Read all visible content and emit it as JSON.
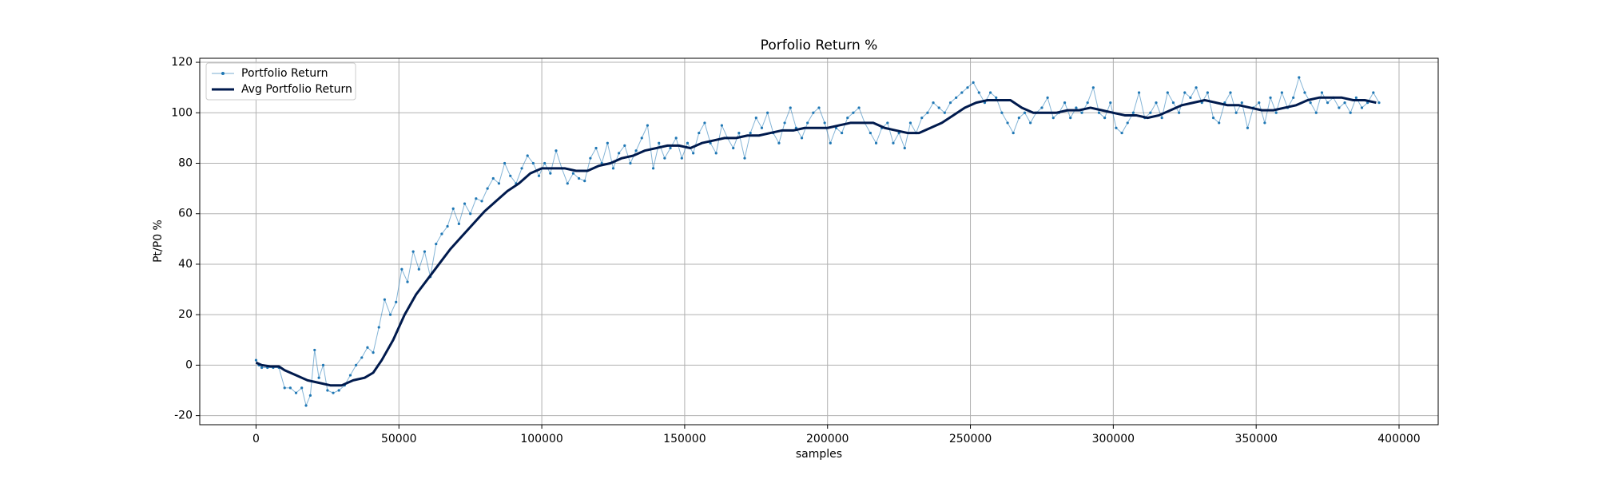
{
  "chart_data": {
    "type": "line",
    "title": "Porfolio Return %",
    "x_label": "samples",
    "y_label": "Pt/P0 %",
    "xlim": [
      -19700,
      413700
    ],
    "xticks": [
      0,
      50000,
      100000,
      150000,
      200000,
      250000,
      300000,
      350000,
      400000
    ],
    "ylim": [
      -23.6,
      121.6
    ],
    "yticks": [
      -20,
      0,
      20,
      40,
      60,
      80,
      100,
      120
    ],
    "grid": true,
    "legend": "upper-left",
    "series": [
      {
        "name": "Portfolio Return",
        "color": "#1f77b4",
        "x": [
          0,
          1000,
          2000,
          4000,
          6000,
          8000,
          10000,
          12000,
          14000,
          16000,
          17500,
          19000,
          20500,
          22000,
          23500,
          25000,
          27000,
          29000,
          31000,
          33000,
          35000,
          37000,
          39000,
          41000,
          43000,
          45000,
          47000,
          49000,
          51000,
          53000,
          55000,
          57000,
          59000,
          61000,
          63000,
          65000,
          67000,
          69000,
          71000,
          73000,
          75000,
          77000,
          79000,
          81000,
          83000,
          85000,
          87000,
          89000,
          91000,
          93000,
          95000,
          97000,
          99000,
          101000,
          103000,
          105000,
          107000,
          109000,
          111000,
          113000,
          115000,
          117000,
          119000,
          121000,
          123000,
          125000,
          127000,
          129000,
          131000,
          133000,
          135000,
          137000,
          139000,
          141000,
          143000,
          145000,
          147000,
          149000,
          151000,
          153000,
          155000,
          157000,
          159000,
          161000,
          163000,
          165000,
          167000,
          169000,
          171000,
          173000,
          175000,
          177000,
          179000,
          181000,
          183000,
          185000,
          187000,
          189000,
          191000,
          193000,
          195000,
          197000,
          199000,
          201000,
          203000,
          205000,
          207000,
          209000,
          211000,
          213000,
          215000,
          217000,
          219000,
          221000,
          223000,
          225000,
          227000,
          229000,
          231000,
          233000,
          235000,
          237000,
          239000,
          241000,
          243000,
          245000,
          247000,
          249000,
          251000,
          253000,
          255000,
          257000,
          259000,
          261000,
          263000,
          265000,
          267000,
          269000,
          271000,
          273000,
          275000,
          277000,
          279000,
          281000,
          283000,
          285000,
          287000,
          289000,
          291000,
          293000,
          295000,
          297000,
          299000,
          301000,
          303000,
          305000,
          307000,
          309000,
          311000,
          313000,
          315000,
          317000,
          319000,
          321000,
          323000,
          325000,
          327000,
          329000,
          331000,
          333000,
          335000,
          337000,
          339000,
          341000,
          343000,
          345000,
          347000,
          349000,
          351000,
          353000,
          355000,
          357000,
          359000,
          361000,
          363000,
          365000,
          367000,
          369000,
          371000,
          373000,
          375000,
          377000,
          379000,
          381000,
          383000,
          385000,
          387000,
          389000,
          391000,
          393000
        ],
        "values": [
          2,
          0,
          -1,
          -1,
          -1,
          -1,
          -9,
          -9,
          -11,
          -9,
          -16,
          -12,
          6,
          -5,
          0,
          -10,
          -11,
          -10,
          -8,
          -4,
          0,
          3,
          7,
          5,
          15,
          26,
          20,
          25,
          38,
          33,
          45,
          38,
          45,
          35,
          48,
          52,
          55,
          62,
          56,
          64,
          60,
          66,
          65,
          70,
          74,
          72,
          80,
          75,
          72,
          78,
          83,
          80,
          75,
          80,
          76,
          85,
          78,
          72,
          76,
          74,
          73,
          82,
          86,
          80,
          88,
          78,
          84,
          87,
          80,
          85,
          90,
          95,
          78,
          88,
          82,
          86,
          90,
          82,
          88,
          84,
          92,
          96,
          88,
          84,
          95,
          90,
          86,
          92,
          82,
          92,
          98,
          94,
          100,
          92,
          88,
          96,
          102,
          94,
          90,
          96,
          100,
          102,
          96,
          88,
          94,
          92,
          98,
          100,
          102,
          96,
          92,
          88,
          94,
          96,
          88,
          92,
          86,
          96,
          92,
          98,
          100,
          104,
          102,
          100,
          104,
          106,
          108,
          110,
          112,
          108,
          104,
          108,
          106,
          100,
          96,
          92,
          98,
          100,
          96,
          100,
          102,
          106,
          98,
          100,
          104,
          98,
          102,
          100,
          104,
          110,
          100,
          98,
          104,
          94,
          92,
          96,
          100,
          108,
          98,
          100,
          104,
          98,
          108,
          104,
          100,
          108,
          106,
          110,
          104,
          108,
          98,
          96,
          104,
          108,
          100,
          104,
          94,
          102,
          104,
          96,
          106,
          100,
          108,
          102,
          106,
          114,
          108,
          104,
          100,
          108,
          104,
          106,
          102,
          104,
          100,
          106,
          102,
          104,
          108,
          104
        ]
      },
      {
        "name": "Avg Portfolio Return",
        "color": "#001a4d",
        "x": [
          0,
          2000,
          5000,
          8000,
          10000,
          14000,
          18000,
          22000,
          26000,
          30000,
          34000,
          38000,
          41000,
          44000,
          48000,
          52000,
          56000,
          60000,
          64000,
          68000,
          72000,
          76000,
          80000,
          84000,
          88000,
          92000,
          96000,
          100000,
          104000,
          108000,
          112000,
          116000,
          120000,
          124000,
          128000,
          132000,
          136000,
          140000,
          144000,
          148000,
          152000,
          156000,
          160000,
          164000,
          168000,
          172000,
          176000,
          180000,
          184000,
          188000,
          192000,
          196000,
          200000,
          204000,
          208000,
          212000,
          216000,
          220000,
          224000,
          228000,
          232000,
          236000,
          240000,
          244000,
          248000,
          252000,
          256000,
          260000,
          264000,
          268000,
          272000,
          276000,
          280000,
          284000,
          288000,
          292000,
          296000,
          300000,
          304000,
          308000,
          312000,
          316000,
          320000,
          324000,
          328000,
          332000,
          336000,
          340000,
          344000,
          348000,
          352000,
          356000,
          360000,
          364000,
          368000,
          372000,
          376000,
          380000,
          384000,
          388000,
          392000
        ],
        "values": [
          1,
          0,
          -0.5,
          -0.5,
          -2,
          -4,
          -6,
          -7,
          -8,
          -8,
          -6,
          -5,
          -3,
          2,
          10,
          20,
          28,
          34,
          40,
          46,
          51,
          56,
          61,
          65,
          69,
          72,
          76,
          78,
          78,
          78,
          77,
          77,
          79,
          80,
          82,
          83,
          85,
          86,
          87,
          87,
          86,
          88,
          89,
          90,
          90,
          91,
          91,
          92,
          93,
          93,
          94,
          94,
          94,
          95,
          96,
          96,
          96,
          94,
          93,
          92,
          92,
          94,
          96,
          99,
          102,
          104,
          105,
          105,
          105,
          102,
          100,
          100,
          100,
          101,
          101,
          102,
          101,
          100,
          99,
          99,
          98,
          99,
          101,
          103,
          104,
          105,
          104,
          103,
          103,
          102,
          101,
          101,
          102,
          103,
          105,
          106,
          106,
          106,
          105,
          105,
          104
        ]
      }
    ]
  }
}
